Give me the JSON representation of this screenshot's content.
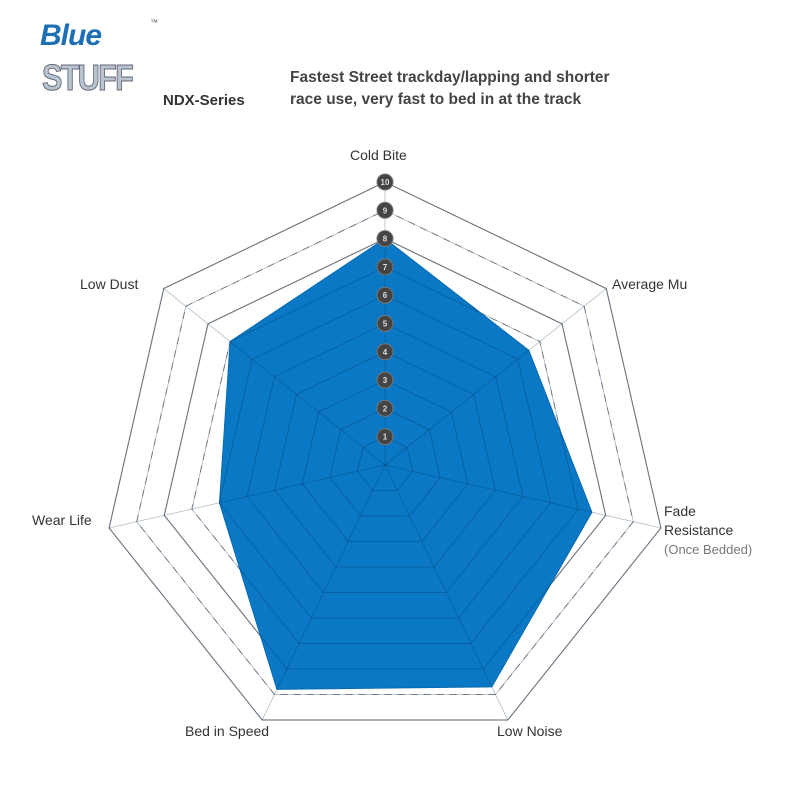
{
  "header": {
    "logo_text_1": "Blue",
    "logo_text_2": "STUFF",
    "logo_tm": "™",
    "series": "NDX-Series",
    "description_line1": "Fastest Street trackday/lapping and shorter",
    "description_line2": "race use, very fast to bed in at the track"
  },
  "chart_data": {
    "type": "radar",
    "axes": [
      "Cold Bite",
      "Average Mu",
      "Fade Resistance",
      "Low Noise",
      "Bed in Speed",
      "Wear Life",
      "Low Dust"
    ],
    "axis_sublabels": {
      "Fade Resistance": "(Once Bedded)"
    },
    "values": [
      8,
      6.5,
      7.5,
      8.7,
      8.8,
      6,
      7
    ],
    "range": [
      0,
      10
    ],
    "scale_ticks": [
      "1",
      "2",
      "3",
      "4",
      "5",
      "6",
      "7",
      "8",
      "9",
      "10"
    ],
    "fill_color": "#0a78c4",
    "grid": true
  }
}
